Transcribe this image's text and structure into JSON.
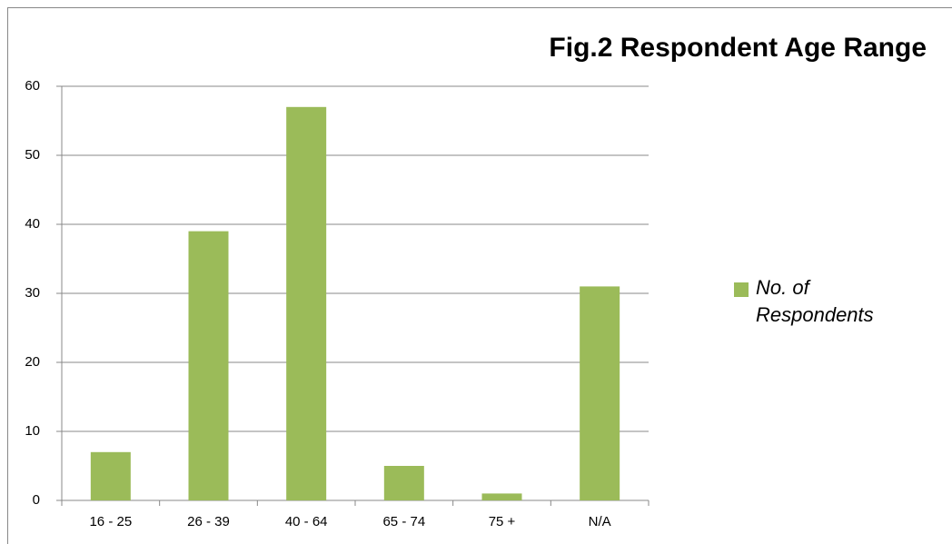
{
  "chart_data": {
    "type": "bar",
    "title": "Fig.2 Respondent Age Range",
    "categories": [
      "16 - 25",
      "26 - 39",
      "40 - 64",
      "65 - 74",
      "75 +",
      "N/A"
    ],
    "series": [
      {
        "name": "No. of Respondents",
        "color": "#9bbb59",
        "values": [
          7,
          39,
          57,
          5,
          1,
          31
        ]
      }
    ],
    "ylim": [
      0,
      60
    ],
    "yticks": [
      0,
      10,
      20,
      30,
      40,
      50,
      60
    ],
    "grid": true,
    "legend": "right"
  }
}
